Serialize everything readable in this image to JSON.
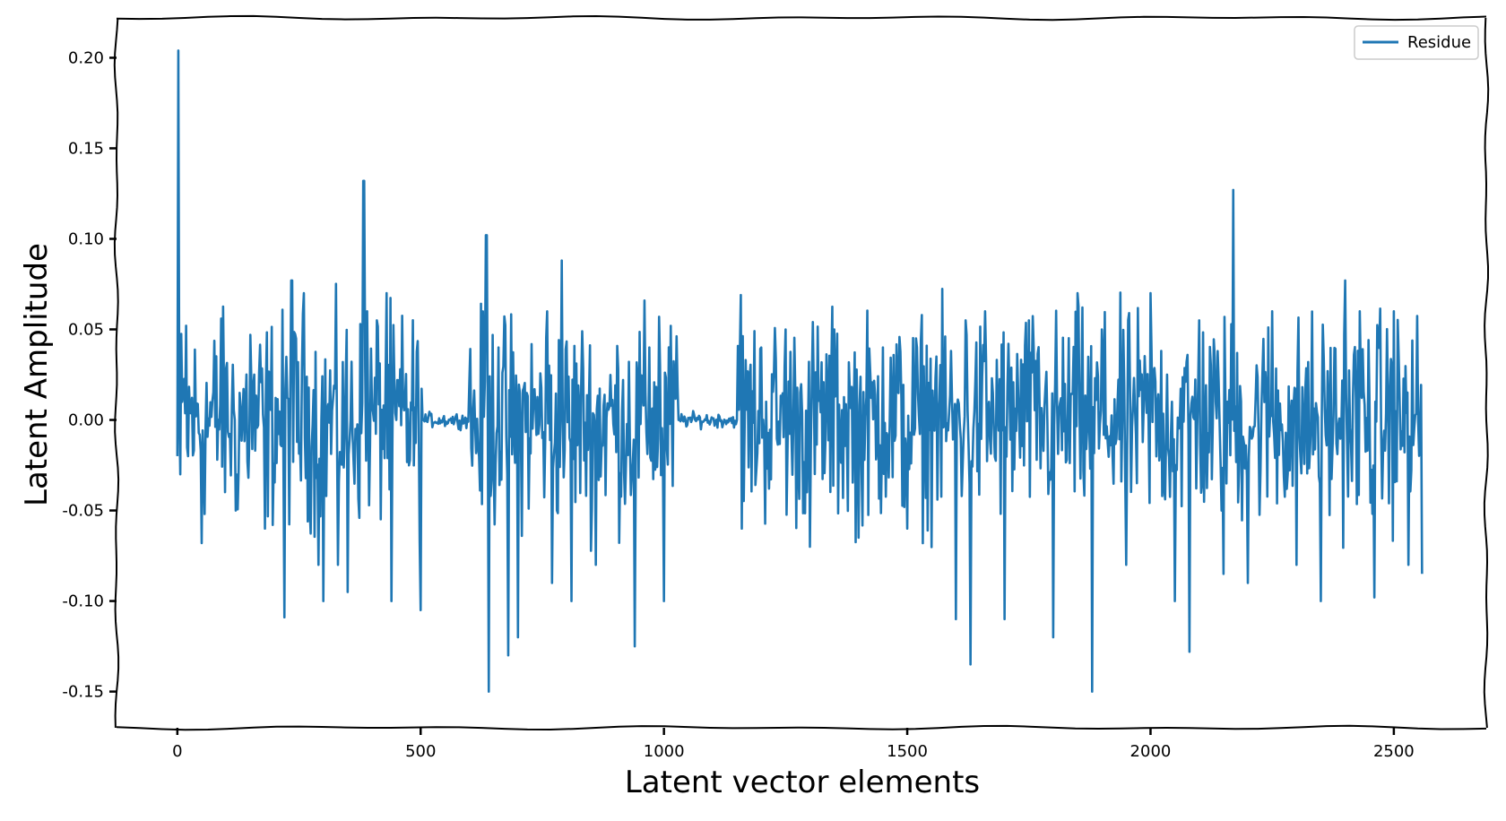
{
  "chart_data": {
    "type": "line",
    "xlabel": "Latent vector elements",
    "ylabel": "Latent Amplitude",
    "xlim": [
      -125,
      2690
    ],
    "ylim": [
      -0.17,
      0.222
    ],
    "x_ticks": [
      0,
      500,
      1000,
      1500,
      2000,
      2500
    ],
    "x_tick_labels": [
      "0",
      "500",
      "1000",
      "1500",
      "2000",
      "2500"
    ],
    "y_ticks": [
      0.2,
      0.15,
      0.1,
      0.05,
      0.0,
      -0.05,
      -0.1,
      -0.15
    ],
    "y_tick_labels": [
      "0.20",
      "0.15",
      "0.10",
      "0.05",
      "0.00",
      "-0.05",
      "-0.10",
      "-0.15"
    ],
    "grid": false,
    "legend_position": "top-right",
    "series": [
      {
        "name": "Residue",
        "color": "#1f77b4",
        "x_range": [
          0,
          2559
        ],
        "peaks": [
          [
            0,
            -0.02
          ],
          [
            2,
            0.204
          ],
          [
            6,
            -0.03
          ],
          [
            10,
            0.01
          ],
          [
            18,
            0.052
          ],
          [
            22,
            -0.02
          ],
          [
            50,
            -0.068
          ],
          [
            90,
            0.056
          ],
          [
            120,
            -0.05
          ],
          [
            150,
            0.047
          ],
          [
            180,
            -0.06
          ],
          [
            220,
            -0.109
          ],
          [
            235,
            0.077
          ],
          [
            260,
            0.07
          ],
          [
            290,
            -0.08
          ],
          [
            300,
            -0.1
          ],
          [
            330,
            -0.08
          ],
          [
            350,
            -0.095
          ],
          [
            383,
            0.132
          ],
          [
            390,
            0.06
          ],
          [
            410,
            0.055
          ],
          [
            430,
            0.07
          ],
          [
            440,
            -0.1
          ],
          [
            450,
            0.0
          ],
          [
            500,
            -0.105
          ],
          [
            505,
            0.0
          ],
          [
            560,
            0.0
          ],
          [
            600,
            0.02
          ],
          [
            620,
            -0.02
          ],
          [
            635,
            0.102
          ],
          [
            640,
            -0.15
          ],
          [
            660,
            0.04
          ],
          [
            680,
            -0.13
          ],
          [
            700,
            -0.12
          ],
          [
            760,
            0.06
          ],
          [
            770,
            -0.09
          ],
          [
            790,
            0.088
          ],
          [
            810,
            -0.1
          ],
          [
            860,
            -0.08
          ],
          [
            940,
            -0.125
          ],
          [
            970,
            0.04
          ],
          [
            990,
            0.057
          ],
          [
            1000,
            -0.1
          ],
          [
            1030,
            0.0
          ],
          [
            1150,
            0.0
          ],
          [
            1158,
            0.069
          ],
          [
            1160,
            -0.06
          ],
          [
            1200,
            0.04
          ],
          [
            1250,
            0.05
          ],
          [
            1300,
            -0.07
          ],
          [
            1350,
            0.05
          ],
          [
            1400,
            -0.065
          ],
          [
            1450,
            0.04
          ],
          [
            1500,
            -0.06
          ],
          [
            1560,
            0.035
          ],
          [
            1600,
            -0.11
          ],
          [
            1620,
            0.055
          ],
          [
            1630,
            -0.135
          ],
          [
            1660,
            0.06
          ],
          [
            1700,
            -0.11
          ],
          [
            1750,
            0.055
          ],
          [
            1800,
            -0.12
          ],
          [
            1850,
            0.07
          ],
          [
            1880,
            -0.15
          ],
          [
            1900,
            0.05
          ],
          [
            1950,
            -0.08
          ],
          [
            2000,
            0.07
          ],
          [
            2050,
            -0.1
          ],
          [
            2080,
            -0.128
          ],
          [
            2100,
            0.055
          ],
          [
            2150,
            -0.085
          ],
          [
            2170,
            0.127
          ],
          [
            2200,
            -0.09
          ],
          [
            2250,
            0.06
          ],
          [
            2300,
            -0.08
          ],
          [
            2350,
            -0.1
          ],
          [
            2400,
            0.077
          ],
          [
            2430,
            0.06
          ],
          [
            2460,
            -0.098
          ],
          [
            2500,
            0.06
          ],
          [
            2530,
            -0.08
          ],
          [
            2559,
            -0.085
          ]
        ]
      }
    ]
  }
}
